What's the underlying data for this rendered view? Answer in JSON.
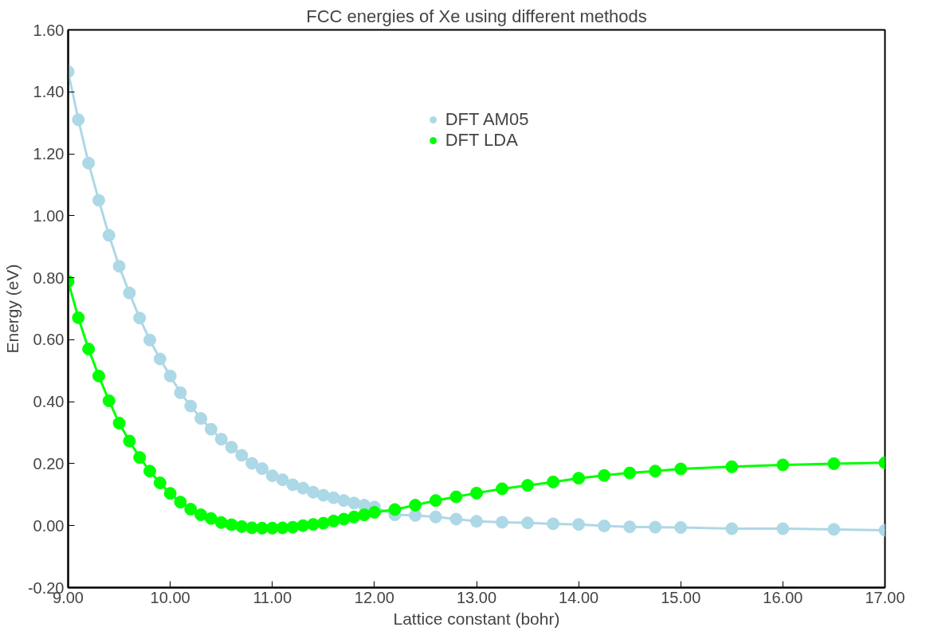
{
  "chart_data": {
    "type": "line",
    "title": "FCC energies of Xe using different methods",
    "xlabel": "Lattice constant (bohr)",
    "ylabel": "Energy (eV)",
    "x": [
      9.0,
      9.1,
      9.2,
      9.3,
      9.4,
      9.5,
      9.6,
      9.7,
      9.8,
      9.9,
      10.0,
      10.1,
      10.2,
      10.3,
      10.4,
      10.5,
      10.6,
      10.7,
      10.8,
      10.9,
      11.0,
      11.1,
      11.2,
      11.3,
      11.4,
      11.5,
      11.6,
      11.7,
      11.8,
      11.9,
      12.0,
      12.2,
      12.4,
      12.6,
      12.8,
      13.0,
      13.25,
      13.5,
      13.75,
      14.0,
      14.25,
      14.5,
      14.75,
      15.0,
      15.5,
      16.0,
      16.5,
      17.0
    ],
    "series": [
      {
        "name": "DFT AM05",
        "color": "#add8e6",
        "values": [
          1.465,
          1.31,
          1.17,
          1.05,
          0.937,
          0.837,
          0.751,
          0.67,
          0.599,
          0.538,
          0.483,
          0.429,
          0.386,
          0.346,
          0.311,
          0.279,
          0.253,
          0.227,
          0.201,
          0.184,
          0.161,
          0.148,
          0.132,
          0.121,
          0.108,
          0.098,
          0.09,
          0.081,
          0.073,
          0.066,
          0.06,
          0.035,
          0.033,
          0.028,
          0.021,
          0.014,
          0.011,
          0.009,
          0.006,
          0.004,
          -0.001,
          -0.004,
          -0.005,
          -0.006,
          -0.01,
          -0.01,
          -0.012,
          -0.015
        ]
      },
      {
        "name": "DFT LDA",
        "color": "#00ff00",
        "values": [
          0.788,
          0.671,
          0.57,
          0.483,
          0.403,
          0.331,
          0.273,
          0.22,
          0.176,
          0.138,
          0.104,
          0.076,
          0.053,
          0.035,
          0.023,
          0.01,
          0.003,
          -0.003,
          -0.007,
          -0.008,
          -0.008,
          -0.007,
          -0.005,
          0.0,
          0.004,
          0.008,
          0.015,
          0.021,
          0.028,
          0.035,
          0.043,
          0.052,
          0.066,
          0.081,
          0.093,
          0.105,
          0.119,
          0.13,
          0.141,
          0.153,
          0.162,
          0.17,
          0.176,
          0.183,
          0.19,
          0.196,
          0.2,
          0.203
        ]
      }
    ],
    "marker": "circle",
    "line_style": "solid",
    "legend": "top",
    "grid": false,
    "xlim": [
      9,
      17
    ],
    "xticks": [
      {
        "value": 9,
        "label": "9.00"
      },
      {
        "value": 10,
        "label": "10.00"
      },
      {
        "value": 11,
        "label": "11.00"
      },
      {
        "value": 12,
        "label": "12.00"
      },
      {
        "value": 13,
        "label": "13.00"
      },
      {
        "value": 14,
        "label": "14.00"
      },
      {
        "value": 15,
        "label": "15.00"
      },
      {
        "value": 16,
        "label": "16.00"
      },
      {
        "value": 17,
        "label": "17.00"
      }
    ],
    "ylim": [
      -0.2,
      1.6
    ],
    "yticks": [
      {
        "value": -0.2,
        "label": "-0.20"
      },
      {
        "value": 0,
        "label": "0.00"
      },
      {
        "value": 0.2,
        "label": "0.20"
      },
      {
        "value": 0.4,
        "label": "0.40"
      },
      {
        "value": 0.6,
        "label": "0.60"
      },
      {
        "value": 0.8,
        "label": "0.80"
      },
      {
        "value": 1.0,
        "label": "1.00"
      },
      {
        "value": 1.2,
        "label": "1.20"
      },
      {
        "value": 1.4,
        "label": "1.40"
      },
      {
        "value": 1.6,
        "label": "1.60"
      }
    ]
  }
}
